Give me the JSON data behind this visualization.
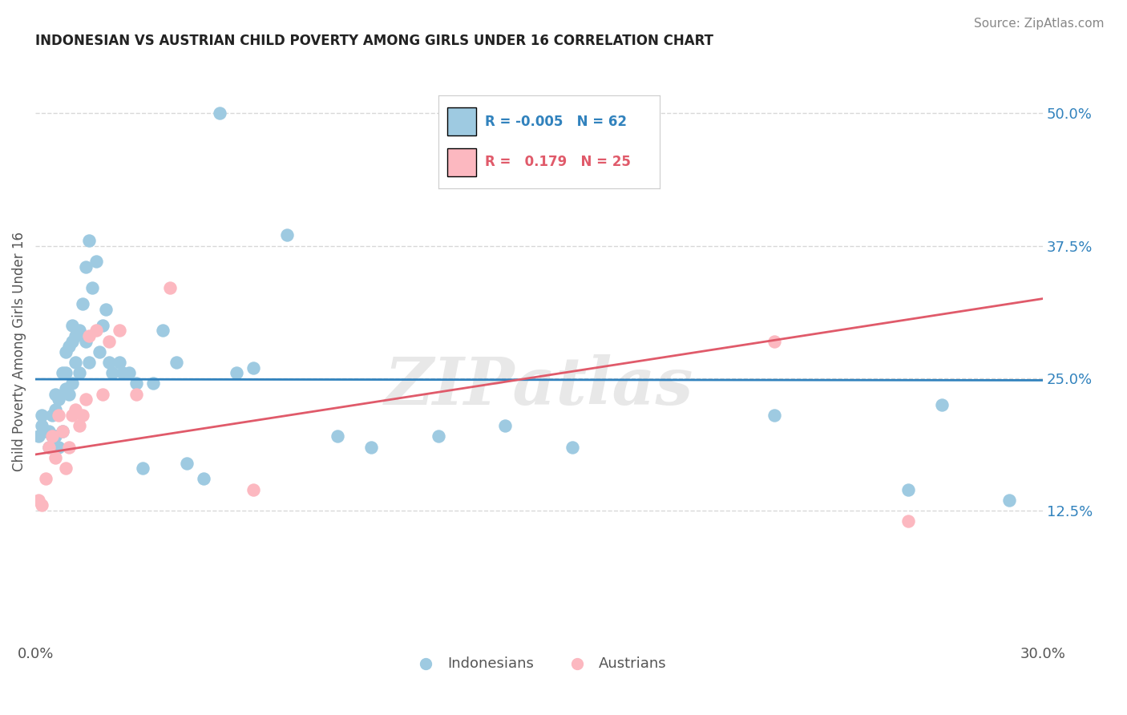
{
  "title": "INDONESIAN VS AUSTRIAN CHILD POVERTY AMONG GIRLS UNDER 16 CORRELATION CHART",
  "source": "Source: ZipAtlas.com",
  "ylabel": "Child Poverty Among Girls Under 16",
  "xlim": [
    0.0,
    0.3
  ],
  "ylim": [
    0.0,
    0.55
  ],
  "yticks": [
    0.125,
    0.25,
    0.375,
    0.5
  ],
  "ytick_labels": [
    "12.5%",
    "25.0%",
    "37.5%",
    "50.0%"
  ],
  "xticks": [
    0.0,
    0.1,
    0.2,
    0.3
  ],
  "xtick_labels": [
    "0.0%",
    "",
    "",
    "30.0%"
  ],
  "indonesian_R": -0.005,
  "indonesian_N": 62,
  "austrian_R": 0.179,
  "austrian_N": 25,
  "blue_color": "#9ecae1",
  "pink_color": "#fcb8c0",
  "blue_line_color": "#3182bd",
  "pink_line_color": "#e05a6a",
  "indonesian_x": [
    0.001,
    0.002,
    0.002,
    0.003,
    0.004,
    0.004,
    0.005,
    0.005,
    0.006,
    0.006,
    0.006,
    0.007,
    0.007,
    0.008,
    0.008,
    0.009,
    0.009,
    0.009,
    0.01,
    0.01,
    0.011,
    0.011,
    0.011,
    0.012,
    0.012,
    0.013,
    0.013,
    0.014,
    0.015,
    0.015,
    0.016,
    0.016,
    0.017,
    0.018,
    0.019,
    0.02,
    0.021,
    0.022,
    0.023,
    0.025,
    0.026,
    0.028,
    0.03,
    0.032,
    0.035,
    0.038,
    0.042,
    0.045,
    0.05,
    0.055,
    0.06,
    0.065,
    0.075,
    0.09,
    0.1,
    0.12,
    0.14,
    0.16,
    0.22,
    0.26,
    0.27,
    0.29
  ],
  "indonesian_y": [
    0.195,
    0.205,
    0.215,
    0.2,
    0.185,
    0.2,
    0.195,
    0.215,
    0.195,
    0.22,
    0.235,
    0.185,
    0.23,
    0.2,
    0.255,
    0.24,
    0.275,
    0.255,
    0.235,
    0.28,
    0.245,
    0.285,
    0.3,
    0.265,
    0.29,
    0.255,
    0.295,
    0.32,
    0.285,
    0.355,
    0.265,
    0.38,
    0.335,
    0.36,
    0.275,
    0.3,
    0.315,
    0.265,
    0.255,
    0.265,
    0.255,
    0.255,
    0.245,
    0.165,
    0.245,
    0.295,
    0.265,
    0.17,
    0.155,
    0.5,
    0.255,
    0.26,
    0.385,
    0.195,
    0.185,
    0.195,
    0.205,
    0.185,
    0.215,
    0.145,
    0.225,
    0.135
  ],
  "austrian_x": [
    0.001,
    0.002,
    0.003,
    0.004,
    0.005,
    0.006,
    0.007,
    0.008,
    0.009,
    0.01,
    0.011,
    0.012,
    0.013,
    0.014,
    0.015,
    0.016,
    0.018,
    0.02,
    0.022,
    0.025,
    0.03,
    0.04,
    0.065,
    0.22,
    0.26
  ],
  "austrian_y": [
    0.135,
    0.13,
    0.155,
    0.185,
    0.195,
    0.175,
    0.215,
    0.2,
    0.165,
    0.185,
    0.215,
    0.22,
    0.205,
    0.215,
    0.23,
    0.29,
    0.295,
    0.235,
    0.285,
    0.295,
    0.235,
    0.335,
    0.145,
    0.285,
    0.115
  ],
  "watermark": "ZIPatlas",
  "background_color": "#ffffff",
  "grid_color": "#d8d8d8",
  "indo_line_y0": 0.249,
  "indo_line_y1": 0.248,
  "aust_line_y0": 0.178,
  "aust_line_y1": 0.325
}
